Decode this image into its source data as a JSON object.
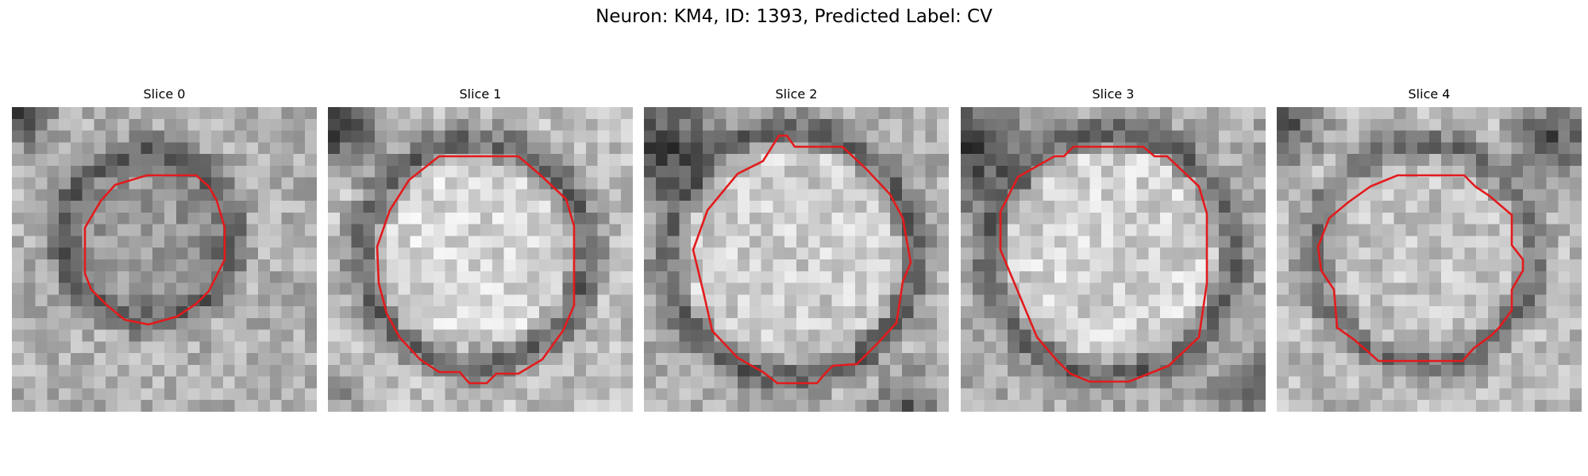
{
  "figure": {
    "title": "Neuron: KM4, ID: 1393, Predicted Label: CV",
    "contour_color": "#e31a1c",
    "colormap": "gray",
    "grid_size": 26
  },
  "slices": [
    {
      "title": "Slice 0"
    },
    {
      "title": "Slice 1"
    },
    {
      "title": "Slice 2"
    },
    {
      "title": "Slice 3"
    },
    {
      "title": "Slice 4"
    }
  ]
}
